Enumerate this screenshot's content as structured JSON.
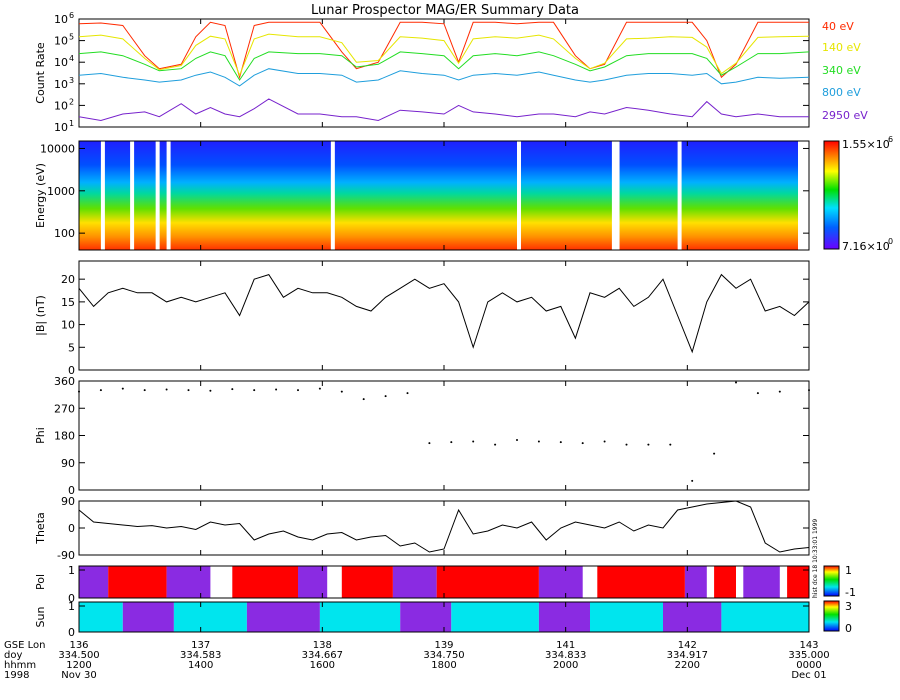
{
  "title": "Lunar Prospector MAG/ER Summary Data",
  "colors": {
    "ch40": "#ff2a00",
    "ch140": "#e6e600",
    "ch340": "#22dd22",
    "ch800": "#1f9edc",
    "ch2950": "#7722cc",
    "pol_pos": "#ff0000",
    "pol_neg": "#8a2be2",
    "sun_day": "#00e5ee",
    "sun_night": "#8a2be2"
  },
  "chart_data": [
    {
      "type": "line",
      "name": "count-rate",
      "ylabel": "Count Rate",
      "scale": "log",
      "ylim": [
        10,
        1000000
      ],
      "yticks": [
        {
          "v": 10,
          "label": "10",
          "sup": "1"
        },
        {
          "v": 100,
          "label": "10",
          "sup": "2"
        },
        {
          "v": 1000,
          "label": "10",
          "sup": "3"
        },
        {
          "v": 10000,
          "label": "10",
          "sup": "4"
        },
        {
          "v": 100000,
          "label": "10",
          "sup": "5"
        },
        {
          "v": 1000000,
          "label": "10",
          "sup": "6"
        }
      ],
      "series": [
        {
          "name": "40 eV",
          "color": "#ff2a00",
          "x": [
            0,
            0.03,
            0.06,
            0.09,
            0.11,
            0.14,
            0.16,
            0.18,
            0.2,
            0.22,
            0.24,
            0.26,
            0.28,
            0.3,
            0.33,
            0.36,
            0.38,
            0.41,
            0.44,
            0.47,
            0.5,
            0.52,
            0.54,
            0.57,
            0.6,
            0.63,
            0.65,
            0.68,
            0.7,
            0.72,
            0.75,
            0.78,
            0.81,
            0.84,
            0.86,
            0.88,
            0.9,
            0.93,
            0.96,
            1
          ],
          "y": [
            600000,
            650000,
            500000,
            20000,
            5000,
            8000,
            150000,
            700000,
            500000,
            2000,
            500000,
            700000,
            700000,
            700000,
            700000,
            30000,
            5000,
            10000,
            700000,
            700000,
            600000,
            10000,
            700000,
            700000,
            600000,
            700000,
            700000,
            20000,
            5000,
            8000,
            700000,
            700000,
            700000,
            700000,
            100000,
            2000,
            8000,
            700000,
            700000,
            700000
          ]
        },
        {
          "name": "140 eV",
          "color": "#e6e600",
          "x": [
            0,
            0.03,
            0.06,
            0.09,
            0.11,
            0.14,
            0.16,
            0.18,
            0.2,
            0.22,
            0.24,
            0.26,
            0.3,
            0.33,
            0.36,
            0.38,
            0.41,
            0.44,
            0.47,
            0.5,
            0.52,
            0.54,
            0.57,
            0.6,
            0.63,
            0.65,
            0.68,
            0.7,
            0.72,
            0.75,
            0.78,
            0.81,
            0.84,
            0.86,
            0.88,
            0.9,
            0.93,
            0.96,
            1
          ],
          "y": [
            150000,
            180000,
            120000,
            15000,
            4500,
            7000,
            60000,
            160000,
            120000,
            2500,
            120000,
            200000,
            150000,
            150000,
            80000,
            10000,
            12000,
            150000,
            130000,
            100000,
            9000,
            120000,
            150000,
            130000,
            180000,
            120000,
            15000,
            5000,
            9000,
            120000,
            130000,
            150000,
            140000,
            50000,
            3000,
            9000,
            140000,
            150000,
            160000
          ]
        },
        {
          "name": "340 eV",
          "color": "#22dd22",
          "x": [
            0,
            0.03,
            0.06,
            0.09,
            0.11,
            0.14,
            0.16,
            0.18,
            0.2,
            0.22,
            0.24,
            0.26,
            0.3,
            0.33,
            0.36,
            0.38,
            0.41,
            0.44,
            0.47,
            0.5,
            0.52,
            0.54,
            0.57,
            0.6,
            0.63,
            0.65,
            0.68,
            0.7,
            0.72,
            0.75,
            0.78,
            0.81,
            0.84,
            0.86,
            0.88,
            0.9,
            0.93,
            0.96,
            1
          ],
          "y": [
            25000,
            30000,
            20000,
            8000,
            4000,
            5000,
            15000,
            30000,
            20000,
            1500,
            15000,
            30000,
            25000,
            25000,
            20000,
            6000,
            8000,
            30000,
            25000,
            20000,
            5000,
            20000,
            25000,
            20000,
            30000,
            20000,
            8000,
            4000,
            6000,
            20000,
            25000,
            25000,
            25000,
            15000,
            2500,
            6000,
            25000,
            25000,
            30000
          ]
        },
        {
          "name": "800 eV",
          "color": "#1f9edc",
          "x": [
            0,
            0.03,
            0.06,
            0.09,
            0.11,
            0.14,
            0.16,
            0.18,
            0.2,
            0.22,
            0.24,
            0.26,
            0.3,
            0.33,
            0.36,
            0.38,
            0.41,
            0.44,
            0.47,
            0.5,
            0.52,
            0.54,
            0.57,
            0.6,
            0.63,
            0.65,
            0.68,
            0.7,
            0.72,
            0.75,
            0.78,
            0.81,
            0.84,
            0.86,
            0.88,
            0.9,
            0.93,
            0.96,
            1
          ],
          "y": [
            2500,
            3000,
            2000,
            1500,
            1200,
            1500,
            2500,
            3500,
            2000,
            800,
            2500,
            5000,
            3000,
            3000,
            2500,
            1200,
            1500,
            4000,
            3000,
            2500,
            1500,
            2500,
            3000,
            2500,
            3500,
            2500,
            1500,
            1200,
            1500,
            2500,
            3000,
            3000,
            2500,
            3000,
            1000,
            1200,
            2000,
            1800,
            2000
          ]
        },
        {
          "name": "2950 eV",
          "color": "#7722cc",
          "x": [
            0,
            0.03,
            0.06,
            0.09,
            0.11,
            0.14,
            0.16,
            0.18,
            0.2,
            0.22,
            0.24,
            0.26,
            0.3,
            0.33,
            0.36,
            0.38,
            0.41,
            0.44,
            0.47,
            0.5,
            0.52,
            0.54,
            0.57,
            0.6,
            0.63,
            0.65,
            0.68,
            0.7,
            0.72,
            0.75,
            0.78,
            0.81,
            0.84,
            0.86,
            0.88,
            0.9,
            0.93,
            0.96,
            1
          ],
          "y": [
            30,
            20,
            40,
            50,
            30,
            120,
            40,
            80,
            40,
            30,
            70,
            200,
            40,
            40,
            30,
            30,
            20,
            60,
            50,
            40,
            100,
            50,
            40,
            30,
            40,
            40,
            30,
            50,
            40,
            80,
            60,
            40,
            30,
            150,
            40,
            30,
            40,
            30,
            30
          ]
        }
      ]
    },
    {
      "type": "heatmap",
      "name": "energy-spectrogram",
      "ylabel": "Energy (eV)",
      "scale": "log",
      "ylim": [
        40,
        15000
      ],
      "yticks": [
        {
          "v": 100,
          "label": "100"
        },
        {
          "v": 1000,
          "label": "1000"
        },
        {
          "v": 10000,
          "label": "10000"
        }
      ],
      "colorbar": {
        "max_label": "1.55×10",
        "max_sup": "6",
        "min_label": "7.16×10",
        "min_sup": "0"
      }
    },
    {
      "type": "line",
      "name": "field-magnitude",
      "ylabel": "|B| (nT)",
      "ylim": [
        0,
        24
      ],
      "yticks": [
        0,
        5,
        10,
        15,
        20
      ],
      "x": [
        0,
        0.02,
        0.04,
        0.06,
        0.08,
        0.1,
        0.12,
        0.14,
        0.16,
        0.18,
        0.2,
        0.22,
        0.24,
        0.26,
        0.28,
        0.3,
        0.32,
        0.34,
        0.36,
        0.38,
        0.4,
        0.42,
        0.44,
        0.46,
        0.48,
        0.5,
        0.52,
        0.54,
        0.56,
        0.58,
        0.6,
        0.62,
        0.64,
        0.66,
        0.68,
        0.7,
        0.72,
        0.74,
        0.76,
        0.78,
        0.8,
        0.82,
        0.84,
        0.86,
        0.88,
        0.9,
        0.92,
        0.94,
        0.96,
        0.98,
        1
      ],
      "y": [
        18,
        14,
        17,
        18,
        17,
        17,
        15,
        16,
        15,
        16,
        17,
        12,
        20,
        21,
        16,
        18,
        17,
        17,
        16,
        14,
        13,
        16,
        18,
        20,
        18,
        19,
        15,
        5,
        15,
        17,
        15,
        16,
        13,
        14,
        7,
        17,
        16,
        18,
        14,
        16,
        20,
        12,
        4,
        15,
        21,
        18,
        20,
        13,
        14,
        12,
        15
      ]
    },
    {
      "type": "scatter",
      "name": "phi-angle",
      "ylabel": "Phi",
      "ylim": [
        0,
        360
      ],
      "yticks": [
        0,
        90,
        180,
        270,
        360
      ],
      "x": [
        0,
        0.03,
        0.06,
        0.09,
        0.12,
        0.15,
        0.18,
        0.21,
        0.24,
        0.27,
        0.3,
        0.33,
        0.36,
        0.39,
        0.42,
        0.45,
        0.48,
        0.51,
        0.54,
        0.57,
        0.6,
        0.63,
        0.66,
        0.69,
        0.72,
        0.75,
        0.78,
        0.81,
        0.84,
        0.87,
        0.9,
        0.93,
        0.96,
        1
      ],
      "y": [
        325,
        330,
        335,
        330,
        332,
        330,
        328,
        333,
        330,
        332,
        330,
        335,
        325,
        300,
        310,
        320,
        155,
        158,
        160,
        150,
        165,
        160,
        158,
        155,
        160,
        150,
        150,
        150,
        30,
        120,
        355,
        320,
        325,
        330
      ]
    },
    {
      "type": "line",
      "name": "theta-angle",
      "ylabel": "Theta",
      "ylim": [
        -90,
        90
      ],
      "yticks": [
        {
          "v": -90,
          "label": "-90"
        },
        {
          "v": 0,
          "label": "0"
        },
        {
          "v": 90,
          "label": "90"
        }
      ],
      "x": [
        0,
        0.02,
        0.04,
        0.06,
        0.08,
        0.1,
        0.12,
        0.14,
        0.16,
        0.18,
        0.2,
        0.22,
        0.24,
        0.26,
        0.28,
        0.3,
        0.32,
        0.34,
        0.36,
        0.38,
        0.4,
        0.42,
        0.44,
        0.46,
        0.48,
        0.5,
        0.52,
        0.54,
        0.56,
        0.58,
        0.6,
        0.62,
        0.64,
        0.66,
        0.68,
        0.7,
        0.72,
        0.74,
        0.76,
        0.78,
        0.8,
        0.82,
        0.84,
        0.86,
        0.88,
        0.9,
        0.92,
        0.94,
        0.96,
        0.98,
        1
      ],
      "y": [
        60,
        20,
        15,
        10,
        5,
        8,
        0,
        5,
        -5,
        20,
        10,
        15,
        -40,
        -20,
        -10,
        -30,
        -40,
        -20,
        -15,
        -40,
        -30,
        -25,
        -60,
        -50,
        -80,
        -70,
        60,
        -20,
        -10,
        10,
        0,
        20,
        -40,
        0,
        20,
        10,
        0,
        20,
        -10,
        10,
        0,
        60,
        70,
        80,
        85,
        90,
        70,
        -50,
        -80,
        -70,
        -65
      ]
    },
    {
      "type": "table",
      "name": "polarity",
      "ylabel": "Pol",
      "yticks": [
        {
          "v": 0,
          "label": "0"
        },
        {
          "v": 1,
          "label": "1"
        }
      ],
      "colorbar": {
        "ticks": [
          "1",
          "-1"
        ],
        "side_note": "hist dce 18 10:33:01 1999"
      },
      "segments": [
        [
          "neg",
          0,
          0.04
        ],
        [
          "pos",
          0.04,
          0.12
        ],
        [
          "neg",
          0.12,
          0.18
        ],
        [
          "pos",
          0.21,
          0.3
        ],
        [
          "neg",
          0.3,
          0.34
        ],
        [
          "pos",
          0.36,
          0.43
        ],
        [
          "neg",
          0.43,
          0.49
        ],
        [
          "pos",
          0.49,
          0.63
        ],
        [
          "neg",
          0.63,
          0.69
        ],
        [
          "pos",
          0.71,
          0.83
        ],
        [
          "neg",
          0.83,
          0.86
        ],
        [
          "pos",
          0.87,
          0.9
        ],
        [
          "neg",
          0.91,
          0.96
        ],
        [
          "pos",
          0.97,
          1
        ]
      ]
    },
    {
      "type": "table",
      "name": "sunlight",
      "ylabel": "Sun",
      "yticks": [
        {
          "v": 0,
          "label": "0"
        },
        {
          "v": 1,
          "label": "1"
        }
      ],
      "colorbar": {
        "ticks": [
          "3",
          "0"
        ]
      },
      "segments": [
        [
          "day",
          0,
          0.06
        ],
        [
          "night",
          0.06,
          0.13
        ],
        [
          "day",
          0.13,
          0.23
        ],
        [
          "night",
          0.23,
          0.33
        ],
        [
          "day",
          0.33,
          0.44
        ],
        [
          "night",
          0.44,
          0.51
        ],
        [
          "day",
          0.51,
          0.63
        ],
        [
          "night",
          0.63,
          0.7
        ],
        [
          "day",
          0.7,
          0.8
        ],
        [
          "night",
          0.8,
          0.88
        ],
        [
          "day",
          0.88,
          1
        ]
      ]
    }
  ],
  "channel_labels": [
    "40 eV",
    "140 eV",
    "340 eV",
    "800 eV",
    "2950 eV"
  ],
  "x_axis": {
    "row_labels": [
      "GSE Lon",
      "doy",
      "hhmm",
      "1998"
    ],
    "columns": [
      [
        "136",
        "334.500",
        "1200",
        "Nov 30"
      ],
      [
        "137",
        "334.583",
        "1400",
        ""
      ],
      [
        "138",
        "334.667",
        "1600",
        ""
      ],
      [
        "139",
        "334.750",
        "1800",
        ""
      ],
      [
        "141",
        "334.833",
        "2000",
        ""
      ],
      [
        "142",
        "334.917",
        "2200",
        ""
      ],
      [
        "143",
        "335.000",
        "0000",
        "Dec 01"
      ]
    ]
  }
}
